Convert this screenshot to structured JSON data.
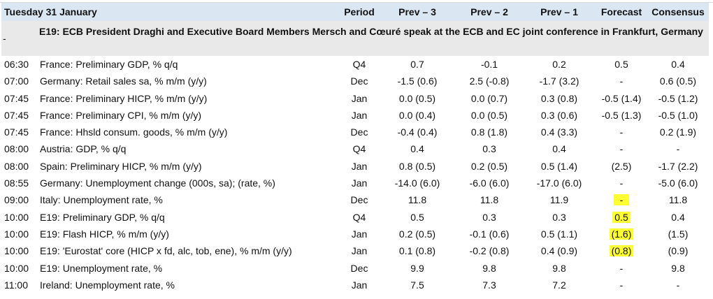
{
  "header": {
    "date": "Tuesday 31 January",
    "period": "Period",
    "prev3": "Prev – 3",
    "prev2": "Prev – 2",
    "prev1": "Prev – 1",
    "forecast": "Forecast",
    "consensus": "Consensus"
  },
  "region": {
    "dash": "-",
    "title": "E19: ECB President Draghi and Executive Board Members Mersch and Cœuré speak at the ECB and EC joint conference in Frankfurt, Germany"
  },
  "rows": [
    {
      "time": "06:30",
      "indicator": "France: Preliminary GDP, % q/q",
      "period": "Q4",
      "prev3": "0.7",
      "prev2": "-0.1",
      "prev1": "0.2",
      "forecast": "0.5",
      "consensus": "0.4"
    },
    {
      "time": "07:00",
      "indicator": "Germany: Retail sales sa, % m/m (y/y)",
      "period": "Dec",
      "prev3": "-1.5 (0.6)",
      "prev2": "2.5 (-0.8)",
      "prev1": "-1.7 (3.2)",
      "forecast": "-",
      "consensus": "0.6 (0.5)"
    },
    {
      "time": "07:45",
      "indicator": "France: Preliminary HICP, % m/m (y/y)",
      "period": "Jan",
      "prev3": "0.0 (0.5)",
      "prev2": "0.0 (0.7)",
      "prev1": "0.3 (0.8)",
      "forecast": "-0.5 (1.4)",
      "consensus": "-0.5 (1.2)"
    },
    {
      "time": "07:45",
      "indicator": "France: Preliminary CPI, % m/m (y/y)",
      "period": "Jan",
      "prev3": "0.0 (0.4)",
      "prev2": "0.0 (0.5)",
      "prev1": "0.3 (0.6)",
      "forecast": "-0.5 (1.3)",
      "consensus": "-0.5 (1.0)"
    },
    {
      "time": "07:45",
      "indicator": "France: Hhsld consum. goods, % m/m   (y/y)",
      "period": "Dec",
      "prev3": "-0.4 (0.4)",
      "prev2": "0.8 (1.8)",
      "prev1": "0.4 (3.3)",
      "forecast": "-",
      "consensus": "0.2 (1.9)"
    },
    {
      "time": "08:00",
      "indicator": "Austria: GDP, % q/q",
      "period": "Q4",
      "prev3": "0.4",
      "prev2": "0.3",
      "prev1": "0.4",
      "forecast": "-",
      "consensus": "-"
    },
    {
      "time": "08:00",
      "indicator": "Spain: Preliminary HICP, % m/m (y/y)",
      "period": "Jan",
      "prev3": "0.8 (0.5)",
      "prev2": "0.2 (0.5)",
      "prev1": "0.5 (1.4)",
      "forecast": "(2.5)",
      "consensus": "-1.7 (2.2)"
    },
    {
      "time": "08:55",
      "indicator": "Germany: Unemployment change (000s, sa); (rate, %)",
      "period": "Jan",
      "prev3": "-14.0 (6.0)",
      "prev2": "-6.0 (6.0)",
      "prev1": "-17.0 (6.0)",
      "forecast": "-",
      "consensus": "-5.0 (6.0)"
    },
    {
      "time": "09:00",
      "indicator": "Italy: Unemployment rate, %",
      "period": "Dec",
      "prev3": "11.8",
      "prev2": "11.8",
      "prev1": "11.9",
      "forecast": "-",
      "consensus": "11.8",
      "highlight": true
    },
    {
      "time": "10:00",
      "indicator": "E19: Preliminary GDP, % q/q",
      "period": "Q4",
      "prev3": "0.5",
      "prev2": "0.3",
      "prev1": "0.3",
      "forecast": "0.5",
      "consensus": "0.4",
      "highlight": true
    },
    {
      "time": "10:00",
      "indicator": "E19: Flash HICP, % m/m   (y/y)",
      "period": "Jan",
      "prev3": "0.2 (0.5)",
      "prev2": "-0.1 (0.6)",
      "prev1": "0.5 (1.1)",
      "forecast": "(1.6)",
      "consensus": "(1.5)",
      "highlight": true
    },
    {
      "time": "10:00",
      "indicator": "E19: 'Eurostat' core (HICP x fd, alc, tob, ene), % m/m (y/y)",
      "period": "Jan",
      "prev3": "0.1 (0.8)",
      "prev2": "-0.2 (0.8)",
      "prev1": "0.4 (0.9)",
      "forecast": "(0.8)",
      "consensus": "(0.9)",
      "highlight": true
    },
    {
      "time": "10:00",
      "indicator": "E19: Unemployment rate, %",
      "period": "Dec",
      "prev3": "9.9",
      "prev2": "9.8",
      "prev1": "9.8",
      "forecast": "-",
      "consensus": "9.8"
    },
    {
      "time": "11:00",
      "indicator": "Ireland: Unemployment rate, %",
      "period": "Jan",
      "prev3": "7.5",
      "prev2": "7.3",
      "prev1": "7.2",
      "forecast": "-",
      "consensus": "-"
    }
  ],
  "colors": {
    "header_bg": "#dbe6f3",
    "region_bg": "#e9e9e9",
    "highlight": "#ffff33"
  }
}
